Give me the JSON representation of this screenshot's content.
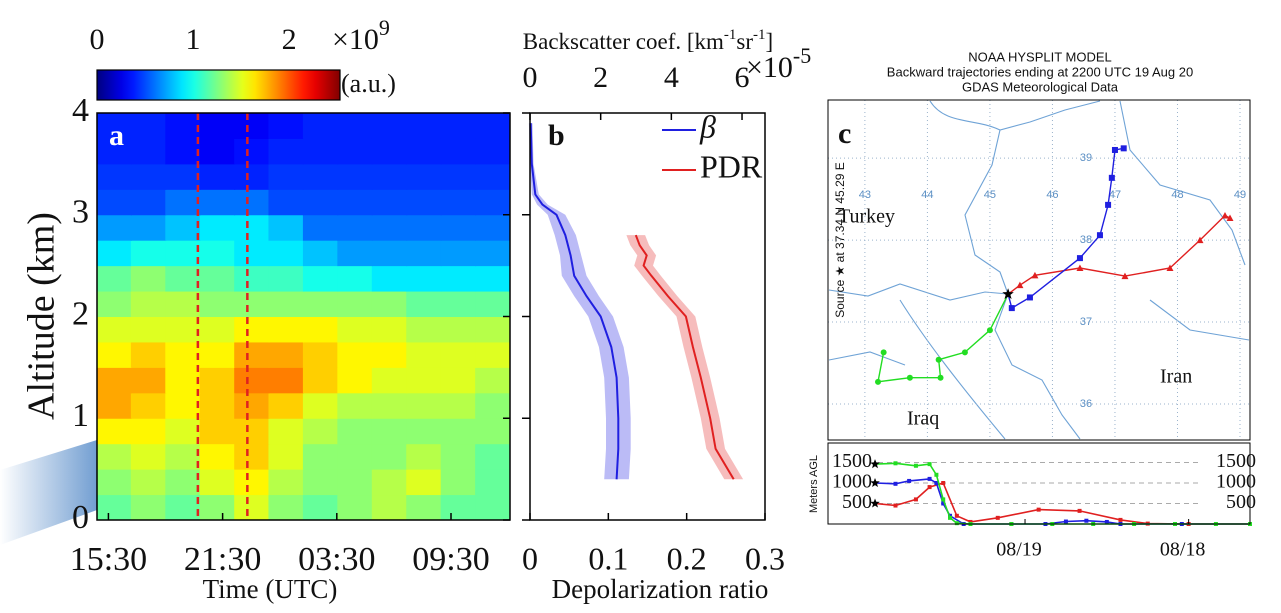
{
  "chart_data": [
    {
      "type": "heatmap",
      "panel_label": "a",
      "ylabel": "Altitude (km)",
      "xlabel": "Time (UTC)",
      "xlim": [
        -0.6,
        21.1
      ],
      "xticks": [
        {
          "value": 0,
          "label": "15:30"
        },
        {
          "value": 6,
          "label": "21:30"
        },
        {
          "value": 12,
          "label": "03:30"
        },
        {
          "value": 18,
          "label": "09:30"
        }
      ],
      "ylim": [
        0,
        4
      ],
      "yticks": [
        0,
        1,
        2,
        3,
        4
      ],
      "x": [
        0.3,
        2.11,
        3.92,
        5.73,
        7.54,
        9.34,
        11.15,
        12.96,
        14.77,
        16.58,
        18.39,
        20.2
      ],
      "y": [
        0.125,
        0.375,
        0.625,
        0.875,
        1.125,
        1.375,
        1.625,
        1.875,
        2.125,
        2.375,
        2.625,
        2.875,
        3.125,
        3.375,
        3.625,
        3.875
      ],
      "values": [
        [
          1.2,
          1.3,
          1.2,
          1.3,
          1.5,
          1.3,
          1.2,
          1.3,
          1.4,
          1.3,
          1.2,
          1.2
        ],
        [
          1.3,
          1.4,
          1.3,
          1.5,
          1.6,
          1.4,
          1.3,
          1.3,
          1.4,
          1.5,
          1.3,
          1.2
        ],
        [
          1.4,
          1.5,
          1.4,
          1.6,
          1.7,
          1.5,
          1.3,
          1.3,
          1.3,
          1.4,
          1.3,
          1.2
        ],
        [
          1.6,
          1.6,
          1.5,
          1.7,
          1.7,
          1.5,
          1.4,
          1.3,
          1.3,
          1.3,
          1.3,
          1.3
        ],
        [
          1.8,
          1.7,
          1.6,
          1.7,
          1.8,
          1.7,
          1.5,
          1.4,
          1.4,
          1.4,
          1.4,
          1.3
        ],
        [
          1.8,
          1.8,
          1.6,
          1.7,
          1.9,
          1.9,
          1.7,
          1.6,
          1.5,
          1.5,
          1.5,
          1.4
        ],
        [
          1.6,
          1.7,
          1.6,
          1.6,
          1.8,
          1.8,
          1.7,
          1.6,
          1.6,
          1.5,
          1.5,
          1.5
        ],
        [
          1.5,
          1.5,
          1.5,
          1.5,
          1.6,
          1.6,
          1.6,
          1.5,
          1.5,
          1.4,
          1.4,
          1.4
        ],
        [
          1.3,
          1.4,
          1.4,
          1.3,
          1.3,
          1.3,
          1.3,
          1.3,
          1.3,
          1.2,
          1.2,
          1.2
        ],
        [
          1.2,
          1.3,
          1.2,
          1.2,
          1.1,
          1.1,
          1.0,
          1.0,
          0.9,
          0.9,
          0.9,
          0.9
        ],
        [
          0.9,
          1.0,
          1.0,
          1.0,
          0.9,
          0.9,
          0.8,
          0.7,
          0.7,
          0.7,
          0.7,
          0.7
        ],
        [
          0.7,
          0.7,
          0.8,
          0.9,
          0.9,
          0.8,
          0.6,
          0.6,
          0.6,
          0.6,
          0.6,
          0.6
        ],
        [
          0.5,
          0.5,
          0.6,
          0.6,
          0.6,
          0.5,
          0.5,
          0.5,
          0.5,
          0.5,
          0.5,
          0.5
        ],
        [
          0.45,
          0.45,
          0.45,
          0.4,
          0.4,
          0.45,
          0.45,
          0.45,
          0.45,
          0.45,
          0.45,
          0.45
        ],
        [
          0.4,
          0.4,
          0.35,
          0.3,
          0.35,
          0.4,
          0.4,
          0.4,
          0.4,
          0.4,
          0.4,
          0.4
        ],
        [
          0.4,
          0.4,
          0.35,
          0.3,
          0.3,
          0.35,
          0.4,
          0.4,
          0.4,
          0.4,
          0.4,
          0.4
        ]
      ],
      "colormap": "jet",
      "clim": [
        0,
        2.53
      ],
      "cticks": [
        0,
        1,
        2
      ],
      "cmultiplier": [
        "×10",
        "9"
      ],
      "cunit": "(a.u.)",
      "highlight_x": [
        4.7,
        7.3
      ],
      "highlight_color": "#e02020"
    },
    {
      "type": "profile",
      "panel_label": "b",
      "xlabel": "Depolarization ratio",
      "xlim": [
        0,
        0.3
      ],
      "xticks": [
        0,
        0.1,
        0.2,
        0.3
      ],
      "x2label": [
        "Backscatter coef. [km",
        "-1",
        "sr",
        "-1",
        "]"
      ],
      "x2lim": [
        0,
        6.65
      ],
      "x2ticks": [
        0,
        2,
        4,
        6
      ],
      "x2multiplier": [
        "×10",
        "-5"
      ],
      "ylim": [
        0,
        4
      ],
      "yticks": [
        0,
        1,
        2,
        3,
        4
      ],
      "series": [
        {
          "name": "β",
          "color": "#1f1fe0",
          "axis": "x2",
          "altitude": [
            0.4,
            0.7,
            1.0,
            1.4,
            1.7,
            2.0,
            2.2,
            2.4,
            2.6,
            2.8,
            3.0,
            3.1,
            3.2,
            3.5,
            3.9
          ],
          "values": [
            2.45,
            2.5,
            2.5,
            2.45,
            2.3,
            2.0,
            1.6,
            1.25,
            1.15,
            1.0,
            0.75,
            0.35,
            0.15,
            0.05,
            0.02
          ],
          "err": [
            0.35,
            0.35,
            0.35,
            0.35,
            0.35,
            0.35,
            0.35,
            0.35,
            0.3,
            0.3,
            0.25,
            0.15,
            0.1,
            0.05,
            0.05
          ]
        },
        {
          "name": "PDR",
          "color": "#e02020",
          "axis": "x",
          "altitude": [
            0.4,
            0.7,
            1.0,
            1.4,
            1.7,
            2.0,
            2.2,
            2.4,
            2.5,
            2.6,
            2.7,
            2.8
          ],
          "values": [
            0.26,
            0.237,
            0.23,
            0.218,
            0.208,
            0.199,
            0.176,
            0.155,
            0.145,
            0.149,
            0.14,
            0.135
          ],
          "err": [
            0.012,
            0.012,
            0.012,
            0.012,
            0.012,
            0.012,
            0.012,
            0.012,
            0.012,
            0.012,
            0.012,
            0.012
          ]
        }
      ]
    },
    {
      "type": "trajectory_map",
      "panel_label": "c",
      "title": [
        "NOAA HYSPLIT MODEL",
        "Backward trajectories ending at 2200 UTC 19 Aug 20",
        "GDAS Meteorological Data"
      ],
      "side_label": "Source ★ at 37.34 N 45.29 E",
      "xlim": [
        42.41,
        49.16
      ],
      "ylim": [
        35.56,
        39.71
      ],
      "xticks": [
        43,
        44,
        45,
        46,
        47,
        48,
        49
      ],
      "yticks": [
        36,
        37,
        38,
        39
      ],
      "regions": [
        "Turkey",
        "Iraq",
        "Iran"
      ],
      "series": [
        {
          "color": "#e02020",
          "marker": "triangle",
          "x": [
            45.29,
            45.48,
            45.72,
            46.44,
            47.16,
            47.88,
            48.36,
            48.76,
            48.84
          ],
          "values": [
            37.34,
            37.45,
            37.57,
            37.66,
            37.56,
            37.66,
            38.0,
            38.3,
            38.27
          ]
        },
        {
          "color": "#1f1fe0",
          "marker": "square",
          "x": [
            45.29,
            45.35,
            45.64,
            46.44,
            46.76,
            46.89,
            46.95,
            47.0,
            47.14
          ],
          "values": [
            37.34,
            37.17,
            37.3,
            37.78,
            38.06,
            38.43,
            38.76,
            39.1,
            39.12
          ]
        },
        {
          "color": "#22dd22",
          "marker": "circle",
          "x": [
            45.29,
            45.0,
            44.6,
            44.18,
            44.21,
            43.72,
            43.21,
            43.3
          ],
          "values": [
            37.34,
            36.9,
            36.63,
            36.54,
            36.32,
            36.32,
            36.27,
            36.63
          ]
        }
      ]
    },
    {
      "type": "line",
      "ylabel": "Meters AGL",
      "xlim": [
        -6.9,
        55
      ],
      "xticks": [
        {
          "value": 22,
          "label": "08/19"
        },
        {
          "value": 46,
          "label": "08/18"
        }
      ],
      "ylim": [
        0,
        1975
      ],
      "yticks": [
        500,
        1000,
        1500
      ],
      "y2ticks": [
        500,
        1000,
        1500
      ],
      "grid": true,
      "series": [
        {
          "color": "#e02020",
          "x": [
            0,
            3,
            6,
            8,
            10,
            12,
            14,
            18,
            24,
            30,
            36,
            40,
            46,
            55
          ],
          "values": [
            500,
            450,
            600,
            900,
            1000,
            200,
            50,
            150,
            350,
            320,
            100,
            10,
            0,
            0
          ]
        },
        {
          "color": "#1f1fe0",
          "x": [
            0,
            3,
            5,
            8,
            9,
            10,
            11,
            13,
            20,
            25,
            28,
            31,
            34,
            36,
            45,
            55
          ],
          "values": [
            1000,
            980,
            1050,
            1100,
            1000,
            500,
            200,
            0,
            0,
            0,
            60,
            80,
            50,
            0,
            0,
            0
          ]
        },
        {
          "color": "#22dd22",
          "x": [
            0,
            3,
            6,
            8,
            9,
            10,
            11,
            12,
            14,
            20,
            26,
            32,
            38,
            44,
            50,
            55
          ],
          "values": [
            1460,
            1480,
            1420,
            1460,
            1200,
            600,
            150,
            20,
            0,
            0,
            0,
            0,
            0,
            0,
            0,
            0
          ]
        }
      ]
    }
  ]
}
